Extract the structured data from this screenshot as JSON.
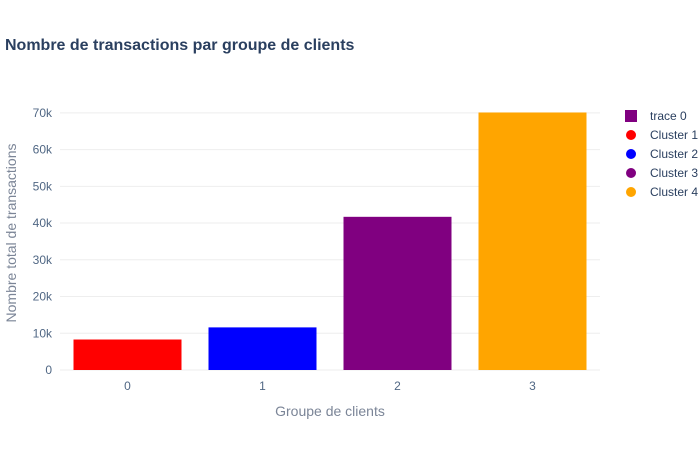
{
  "chart_data": {
    "type": "bar",
    "title": "Nombre de transactions par groupe de clients",
    "xlabel": "Groupe de clients",
    "ylabel": "Nombre total de transactions",
    "categories": [
      "0",
      "1",
      "2",
      "3"
    ],
    "values": [
      8300,
      11600,
      41700,
      70100
    ],
    "bar_colors": [
      "#ff0000",
      "#0000ff",
      "#800080",
      "#ffa500"
    ],
    "ylim": [
      0,
      73500
    ],
    "yticks": [
      0,
      10000,
      20000,
      30000,
      40000,
      50000,
      60000,
      70000
    ],
    "ytick_labels": [
      "0",
      "10k",
      "20k",
      "30k",
      "40k",
      "50k",
      "60k",
      "70k"
    ],
    "grid": true,
    "legend_position": "right",
    "legend": [
      {
        "label": "trace 0",
        "color": "#800080",
        "marker": "square"
      },
      {
        "label": "Cluster 1",
        "color": "#ff0000",
        "marker": "circle"
      },
      {
        "label": "Cluster 2",
        "color": "#0000ff",
        "marker": "circle"
      },
      {
        "label": "Cluster 3",
        "color": "#800080",
        "marker": "circle"
      },
      {
        "label": "Cluster 4",
        "color": "#ffa500",
        "marker": "circle"
      }
    ]
  }
}
